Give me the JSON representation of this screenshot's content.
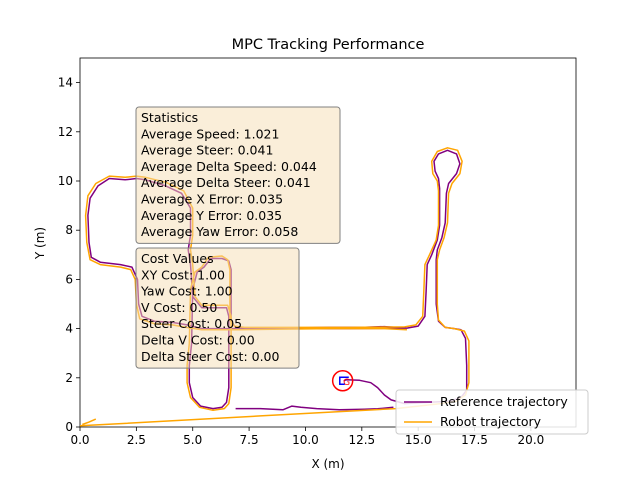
{
  "chart_data": {
    "type": "line",
    "title": "MPC Tracking Performance",
    "xlabel": "X (m)",
    "ylabel": "Y (m)",
    "xlim": [
      0,
      22
    ],
    "ylim": [
      0,
      15
    ],
    "xticks": [
      0.0,
      2.5,
      5.0,
      7.5,
      10.0,
      12.5,
      15.0,
      17.5,
      20.0
    ],
    "yticks": [
      0,
      2,
      4,
      6,
      8,
      10,
      12,
      14
    ],
    "grid": false,
    "legend_position": "lower-right",
    "series": [
      {
        "name": "Reference trajectory",
        "color": "#800080",
        "points": [
          [
            11.7,
            1.88
          ],
          [
            11.8,
            1.92
          ],
          [
            12.4,
            1.9
          ],
          [
            12.9,
            1.8
          ],
          [
            13.2,
            1.6
          ],
          [
            13.5,
            1.3
          ],
          [
            13.8,
            1.1
          ],
          [
            14.4,
            0.95
          ],
          [
            15.4,
            1.0
          ],
          [
            16.4,
            1.05
          ],
          [
            16.9,
            1.2
          ],
          [
            17.15,
            1.5
          ],
          [
            17.15,
            2.5
          ],
          [
            17.1,
            3.6
          ],
          [
            16.9,
            3.95
          ],
          [
            16.6,
            4.0
          ],
          [
            16.2,
            4.05
          ],
          [
            15.9,
            4.3
          ],
          [
            15.8,
            5.0
          ],
          [
            15.8,
            6.8
          ],
          [
            15.85,
            7.2
          ],
          [
            16.05,
            7.7
          ],
          [
            16.2,
            8.3
          ],
          [
            16.25,
            9.5
          ],
          [
            16.35,
            9.9
          ],
          [
            16.7,
            10.3
          ],
          [
            16.85,
            10.7
          ],
          [
            16.7,
            11.1
          ],
          [
            16.3,
            11.25
          ],
          [
            15.9,
            11.1
          ],
          [
            15.7,
            10.8
          ],
          [
            15.75,
            10.4
          ],
          [
            15.9,
            10.1
          ],
          [
            15.95,
            9.7
          ],
          [
            15.95,
            8.2
          ],
          [
            15.85,
            7.6
          ],
          [
            15.6,
            7.0
          ],
          [
            15.4,
            6.6
          ],
          [
            15.35,
            5.5
          ],
          [
            15.3,
            4.5
          ],
          [
            15.0,
            4.1
          ],
          [
            14.5,
            4.02
          ],
          [
            12.0,
            4.0
          ],
          [
            9.5,
            4.0
          ],
          [
            7.3,
            4.0
          ],
          [
            6.9,
            4.05
          ],
          [
            6.7,
            4.3
          ],
          [
            6.7,
            6.4
          ],
          [
            6.6,
            6.75
          ],
          [
            6.3,
            6.85
          ],
          [
            5.8,
            6.85
          ],
          [
            5.5,
            6.5
          ],
          [
            5.2,
            6.3
          ],
          [
            5.0,
            5.6
          ],
          [
            4.95,
            3.4
          ],
          [
            4.85,
            2.5
          ],
          [
            4.85,
            1.8
          ],
          [
            5.0,
            1.2
          ],
          [
            5.35,
            0.85
          ],
          [
            5.9,
            0.75
          ],
          [
            6.3,
            0.8
          ],
          [
            6.5,
            1.0
          ],
          [
            6.6,
            1.6
          ],
          [
            6.6,
            4.5
          ],
          [
            6.5,
            4.85
          ],
          [
            5.4,
            4.85
          ],
          [
            5.0,
            5.3
          ],
          [
            4.9,
            6.6
          ],
          [
            4.8,
            7.2
          ],
          [
            4.9,
            7.8
          ],
          [
            4.9,
            8.9
          ],
          [
            4.5,
            9.5
          ],
          [
            3.8,
            9.8
          ],
          [
            2.9,
            10.05
          ],
          [
            2.5,
            10.1
          ],
          [
            2.0,
            10.05
          ],
          [
            1.3,
            10.1
          ],
          [
            0.8,
            9.8
          ],
          [
            0.45,
            9.3
          ],
          [
            0.35,
            8.6
          ],
          [
            0.4,
            7.5
          ],
          [
            0.5,
            6.9
          ],
          [
            0.9,
            6.7
          ],
          [
            1.8,
            6.6
          ],
          [
            2.3,
            6.5
          ],
          [
            2.55,
            6.0
          ],
          [
            2.6,
            5.0
          ],
          [
            2.75,
            4.5
          ],
          [
            3.3,
            4.3
          ],
          [
            4.1,
            4.25
          ],
          [
            4.75,
            4.15
          ],
          [
            5.4,
            4.0
          ],
          [
            7.0,
            4.0
          ],
          [
            9.0,
            4.02
          ],
          [
            11.0,
            4.05
          ],
          [
            12.5,
            4.05
          ],
          [
            13.5,
            4.08
          ],
          [
            14.0,
            4.05
          ],
          [
            14.5,
            4.0
          ]
        ]
      },
      {
        "name": "Robot trajectory",
        "color": "#ffa500",
        "points": [
          [
            0.0,
            0.05
          ],
          [
            4.0,
            0.25
          ],
          [
            8.0,
            0.45
          ],
          [
            11.0,
            0.6
          ],
          [
            14.0,
            0.75
          ],
          [
            16.0,
            0.95
          ],
          [
            16.7,
            1.05
          ],
          [
            17.1,
            1.3
          ],
          [
            17.25,
            1.8
          ],
          [
            17.25,
            3.5
          ],
          [
            17.05,
            3.9
          ],
          [
            16.6,
            4.0
          ],
          [
            16.2,
            4.05
          ],
          [
            15.9,
            4.35
          ],
          [
            15.85,
            5.0
          ],
          [
            15.85,
            6.8
          ],
          [
            15.95,
            7.2
          ],
          [
            16.15,
            7.7
          ],
          [
            16.3,
            8.3
          ],
          [
            16.35,
            9.5
          ],
          [
            16.5,
            9.9
          ],
          [
            16.85,
            10.3
          ],
          [
            16.95,
            10.8
          ],
          [
            16.75,
            11.25
          ],
          [
            16.3,
            11.35
          ],
          [
            15.85,
            11.2
          ],
          [
            15.6,
            10.8
          ],
          [
            15.65,
            10.3
          ],
          [
            15.85,
            10.0
          ],
          [
            15.9,
            9.6
          ],
          [
            15.9,
            8.2
          ],
          [
            15.8,
            7.6
          ],
          [
            15.5,
            7.0
          ],
          [
            15.3,
            6.6
          ],
          [
            15.25,
            5.5
          ],
          [
            15.2,
            4.5
          ],
          [
            14.9,
            4.15
          ],
          [
            14.4,
            4.07
          ],
          [
            12.0,
            4.05
          ],
          [
            9.5,
            4.05
          ],
          [
            7.3,
            4.05
          ],
          [
            6.85,
            4.1
          ],
          [
            6.65,
            4.35
          ],
          [
            6.65,
            6.4
          ],
          [
            6.55,
            6.8
          ],
          [
            6.3,
            6.95
          ],
          [
            5.7,
            6.9
          ],
          [
            5.4,
            6.5
          ],
          [
            5.1,
            6.3
          ],
          [
            4.9,
            5.6
          ],
          [
            4.85,
            3.4
          ],
          [
            4.75,
            2.5
          ],
          [
            4.75,
            1.8
          ],
          [
            4.9,
            1.2
          ],
          [
            5.3,
            0.8
          ],
          [
            5.9,
            0.68
          ],
          [
            6.4,
            0.75
          ],
          [
            6.6,
            0.95
          ],
          [
            6.7,
            1.6
          ],
          [
            6.7,
            4.5
          ],
          [
            6.55,
            4.95
          ],
          [
            5.4,
            4.95
          ],
          [
            5.1,
            5.3
          ],
          [
            5.0,
            6.6
          ],
          [
            4.9,
            7.2
          ],
          [
            5.0,
            7.8
          ],
          [
            5.0,
            8.9
          ],
          [
            4.6,
            9.6
          ],
          [
            3.8,
            9.95
          ],
          [
            2.9,
            10.15
          ],
          [
            2.5,
            10.2
          ],
          [
            2.0,
            10.15
          ],
          [
            1.3,
            10.2
          ],
          [
            0.7,
            9.9
          ],
          [
            0.35,
            9.4
          ],
          [
            0.25,
            8.6
          ],
          [
            0.3,
            7.5
          ],
          [
            0.45,
            6.8
          ],
          [
            0.9,
            6.6
          ],
          [
            1.8,
            6.5
          ],
          [
            2.25,
            6.4
          ],
          [
            2.45,
            6.0
          ],
          [
            2.5,
            5.0
          ],
          [
            2.65,
            4.4
          ],
          [
            3.3,
            4.2
          ],
          [
            4.1,
            4.15
          ],
          [
            4.7,
            4.05
          ],
          [
            5.4,
            3.95
          ],
          [
            7.0,
            3.95
          ],
          [
            9.0,
            3.98
          ],
          [
            11.0,
            4.0
          ],
          [
            12.5,
            4.0
          ],
          [
            13.5,
            4.0
          ],
          [
            14.5,
            3.95
          ]
        ]
      }
    ],
    "robot_tail": [
      [
        0.1,
        0.1
      ],
      [
        0.4,
        0.2
      ],
      [
        0.7,
        0.32
      ]
    ],
    "reference_lower_wiggle": [
      [
        6.9,
        0.75
      ],
      [
        8.0,
        0.75
      ],
      [
        9.0,
        0.7
      ],
      [
        9.4,
        0.85
      ],
      [
        9.8,
        0.8
      ],
      [
        10.5,
        0.75
      ],
      [
        11.5,
        0.7
      ],
      [
        12.6,
        0.72
      ],
      [
        13.2,
        0.74
      ],
      [
        13.9,
        0.8
      ]
    ],
    "goal_marker": {
      "x": 11.65,
      "y": 1.88,
      "label": "G",
      "color": "#ff0000"
    },
    "robot_marker": {
      "x": 11.7,
      "y": 1.9,
      "color": "#0000ff"
    },
    "annotations": {
      "statistics": {
        "heading": "Statistics",
        "lines": [
          "Average Speed: 1.021",
          "Average Steer: 0.041",
          "Average Delta Speed: 0.044",
          "Average Delta Steer: 0.041",
          "Average X Error: 0.035",
          "Average Y Error: 0.035",
          "Average Yaw Error: 0.058"
        ]
      },
      "cost_values": {
        "heading": "Cost Values",
        "lines": [
          "XY Cost: 1.00",
          "Yaw Cost: 1.00",
          "V Cost: 0.50",
          "Steer Cost: 0.05",
          "Delta V Cost: 0.00",
          "Delta Steer Cost: 0.00"
        ]
      },
      "box_fill": "#f5deb3",
      "box_opacity": 0.5
    }
  }
}
